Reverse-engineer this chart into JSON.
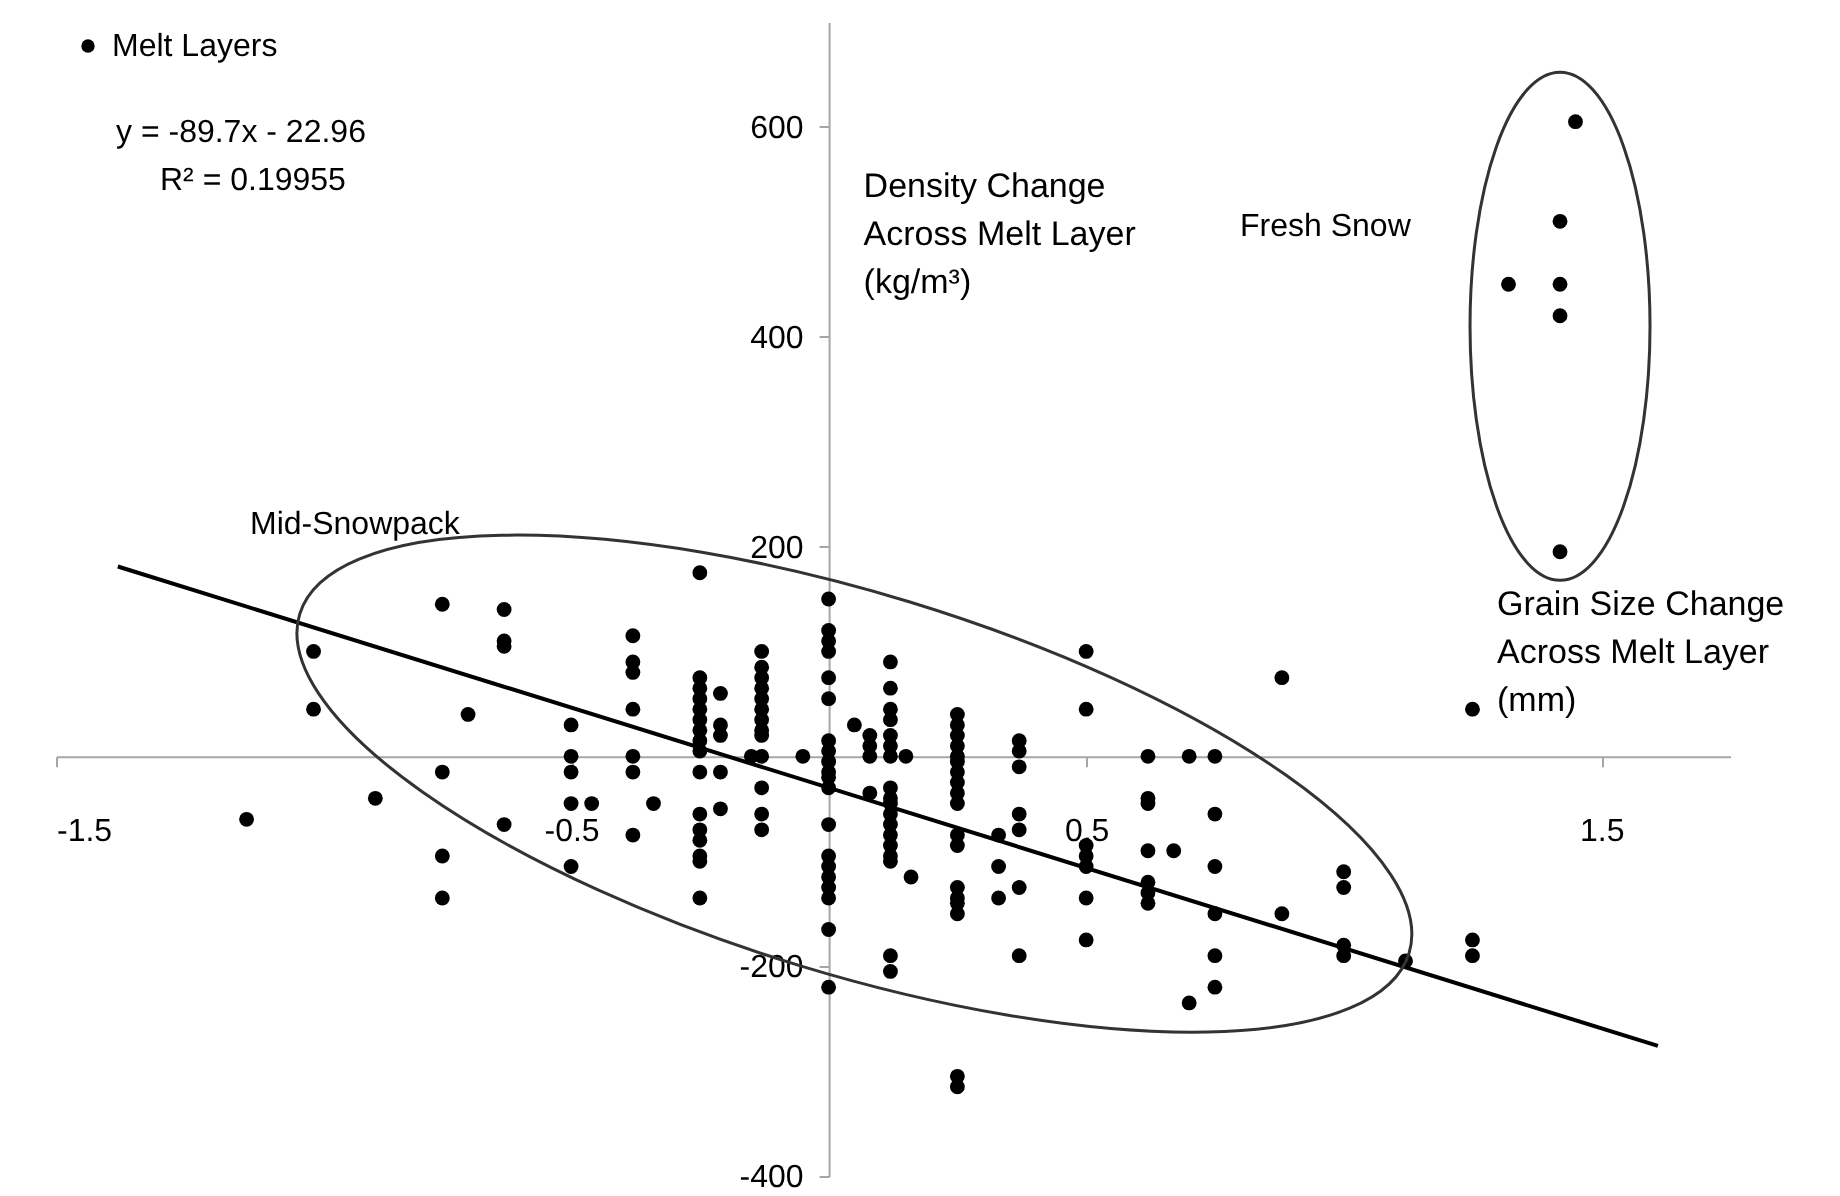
{
  "chart_data": {
    "type": "scatter",
    "xlabel": "Grain Size Change Across Melt Layer (mm)",
    "ylabel": "Density Change Across Melt Layer (kg/m³)",
    "xlim": [
      -1.5,
      1.75
    ],
    "xticks": [
      -1.5,
      -0.5,
      0.5,
      1.5
    ],
    "ylim": [
      -400,
      700
    ],
    "yticks": [
      -400,
      -200,
      200,
      400,
      600
    ],
    "grid": false,
    "legend": "top left",
    "annotations": [
      "y = -89.7x - 22.96",
      "R² = 0.19955",
      "Mid-Snowpack",
      "Fresh Snow"
    ],
    "series": [
      {
        "name": "Melt Layers",
        "color": "#000000",
        "marker": "circle",
        "x": [
          -1.13,
          -1.0,
          -1.0,
          -0.88,
          -0.75,
          -0.75,
          -0.75,
          -0.75,
          -0.7,
          -0.63,
          -0.63,
          -0.63,
          -0.63,
          -0.5,
          -0.5,
          -0.5,
          -0.5,
          -0.5,
          -0.46,
          -0.38,
          -0.38,
          -0.38,
          -0.38,
          -0.38,
          -0.38,
          -0.38,
          -0.34,
          -0.25,
          -0.25,
          -0.25,
          -0.25,
          -0.25,
          -0.25,
          -0.25,
          -0.25,
          -0.25,
          -0.25,
          -0.25,
          -0.25,
          -0.25,
          -0.25,
          -0.25,
          -0.25,
          -0.21,
          -0.21,
          -0.21,
          -0.21,
          -0.21,
          -0.15,
          -0.13,
          -0.13,
          -0.13,
          -0.13,
          -0.13,
          -0.13,
          -0.13,
          -0.13,
          -0.13,
          -0.13,
          -0.13,
          -0.13,
          -0.13,
          -0.05,
          0,
          0,
          0,
          0,
          0,
          0,
          0,
          0,
          0,
          0,
          0,
          0,
          0,
          0,
          0,
          0,
          0,
          0,
          0,
          0,
          0.05,
          0.08,
          0.08,
          0.08,
          0.08,
          0.12,
          0.12,
          0.12,
          0.12,
          0.12,
          0.12,
          0.12,
          0.12,
          0.12,
          0.12,
          0.12,
          0.12,
          0.12,
          0.12,
          0.12,
          0.12,
          0.12,
          0.12,
          0.15,
          0.16,
          0.25,
          0.25,
          0.25,
          0.25,
          0.25,
          0.25,
          0.25,
          0.25,
          0.25,
          0.25,
          0.25,
          0.25,
          0.25,
          0.25,
          0.25,
          0.25,
          0.25,
          0.25,
          0.33,
          0.33,
          0.33,
          0.37,
          0.37,
          0.37,
          0.37,
          0.37,
          0.37,
          0.37,
          0.5,
          0.5,
          0.5,
          0.5,
          0.5,
          0.5,
          0.5,
          0.62,
          0.62,
          0.62,
          0.62,
          0.62,
          0.62,
          0.62,
          0.67,
          0.7,
          0.7,
          0.75,
          0.75,
          0.75,
          0.75,
          0.75,
          0.75,
          0.88,
          0.88,
          1.0,
          1.0,
          1.0,
          1.0,
          1.12,
          1.25,
          1.25,
          1.25,
          1.32,
          1.42,
          1.42,
          1.42,
          1.42,
          1.45
        ],
        "values": [
          -60,
          100,
          45,
          -40,
          145,
          -15,
          -95,
          -135,
          40,
          140,
          110,
          105,
          -65,
          30,
          0,
          -15,
          -45,
          -105,
          -45,
          115,
          90,
          80,
          45,
          0,
          -15,
          -75,
          -45,
          175,
          75,
          65,
          55,
          45,
          35,
          25,
          15,
          5,
          -15,
          -55,
          -70,
          -80,
          -95,
          -100,
          -135,
          60,
          30,
          20,
          -15,
          -50,
          0,
          100,
          85,
          75,
          65,
          55,
          45,
          35,
          25,
          20,
          0,
          -30,
          -55,
          -70,
          0,
          150,
          120,
          110,
          100,
          75,
          55,
          15,
          5,
          -5,
          -15,
          -20,
          -30,
          -65,
          -95,
          -105,
          -115,
          -125,
          -135,
          -165,
          -220,
          30,
          20,
          10,
          0,
          -35,
          90,
          65,
          45,
          35,
          20,
          10,
          0,
          -30,
          -40,
          -45,
          -55,
          -65,
          -75,
          -85,
          -95,
          -100,
          -190,
          -205,
          0,
          -115,
          40,
          30,
          20,
          10,
          0,
          -5,
          -15,
          -25,
          -35,
          -45,
          -75,
          -85,
          -125,
          -135,
          -140,
          -150,
          -305,
          -315,
          -75,
          -105,
          -135,
          15,
          5,
          -10,
          -55,
          -70,
          -125,
          -190,
          100,
          45,
          -85,
          -95,
          -105,
          -135,
          -175,
          0,
          -40,
          -45,
          -90,
          -120,
          -130,
          -140,
          -90,
          0,
          -235,
          0,
          -55,
          -105,
          -150,
          -190,
          -220,
          75,
          -150,
          -110,
          -125,
          -180,
          -190,
          -195,
          45,
          -175,
          -190,
          450,
          510,
          450,
          420,
          195,
          605
        ]
      },
      {
        "type": "line",
        "color": "#000000",
        "x": [
          -1.38,
          1.61
        ],
        "values": [
          181,
          -276
        ]
      }
    ]
  }
}
